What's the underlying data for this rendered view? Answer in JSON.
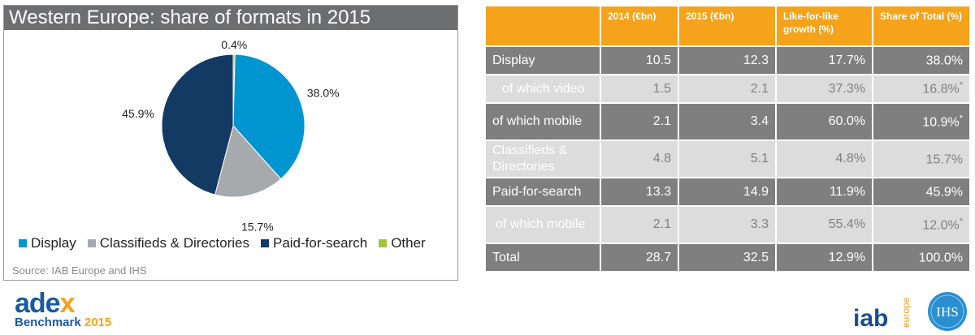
{
  "chart_data": {
    "type": "pie",
    "title": "Western Europe: share of formats in 2015",
    "categories": [
      "Display",
      "Classifieds & Directories",
      "Paid-for-search",
      "Other"
    ],
    "values": [
      38.0,
      15.7,
      45.9,
      0.4
    ],
    "data_labels": [
      "38.0%",
      "15.7%",
      "45.9%",
      "0.4%"
    ],
    "colors": [
      "#0095d0",
      "#a7aaad",
      "#123a63",
      "#a4c43b"
    ],
    "legend": {
      "placement": "bottom"
    },
    "source": "Source: IAB Europe and IHS"
  },
  "table": {
    "columns": [
      "",
      "2014 (€bn)",
      "2015 (€bn)",
      "Like-for-like growth (%)",
      "Share of Total (%)"
    ],
    "rows": [
      {
        "label": "Display",
        "c2014": "10.5",
        "c2015": "12.3",
        "growth": "17.7%",
        "share": "38.0%",
        "mark": ""
      },
      {
        "label": "of which video",
        "c2014": "1.5",
        "c2015": "2.1",
        "growth": "37.3%",
        "share": "16.8%",
        "mark": "*"
      },
      {
        "label": "of which mobile",
        "c2014": "2.1",
        "c2015": "3.4",
        "growth": "60.0%",
        "share": "10.9%",
        "mark": "*"
      },
      {
        "label": "Classifieds & Directories",
        "c2014": "4.8",
        "c2015": "5.1",
        "growth": "4.8%",
        "share": "15.7%",
        "mark": ""
      },
      {
        "label": "Paid-for-search",
        "c2014": "13.3",
        "c2015": "14.9",
        "growth": "11.9%",
        "share": "45.9%",
        "mark": ""
      },
      {
        "label": "of which mobile",
        "c2014": "2.1",
        "c2015": "3.3",
        "growth": "55.4%",
        "share": "12.0%",
        "mark": "*"
      },
      {
        "label": "Total",
        "c2014": "28.7",
        "c2015": "32.5",
        "growth": "12.9%",
        "share": "100.0%",
        "mark": ""
      }
    ]
  },
  "logos": {
    "adex_a": "ade",
    "adex_x": "x",
    "benchmark": "Benchmark",
    "benchmark_year": "2015",
    "iab": "iab",
    "iab_europe": "europe",
    "ihs": "IHS"
  }
}
